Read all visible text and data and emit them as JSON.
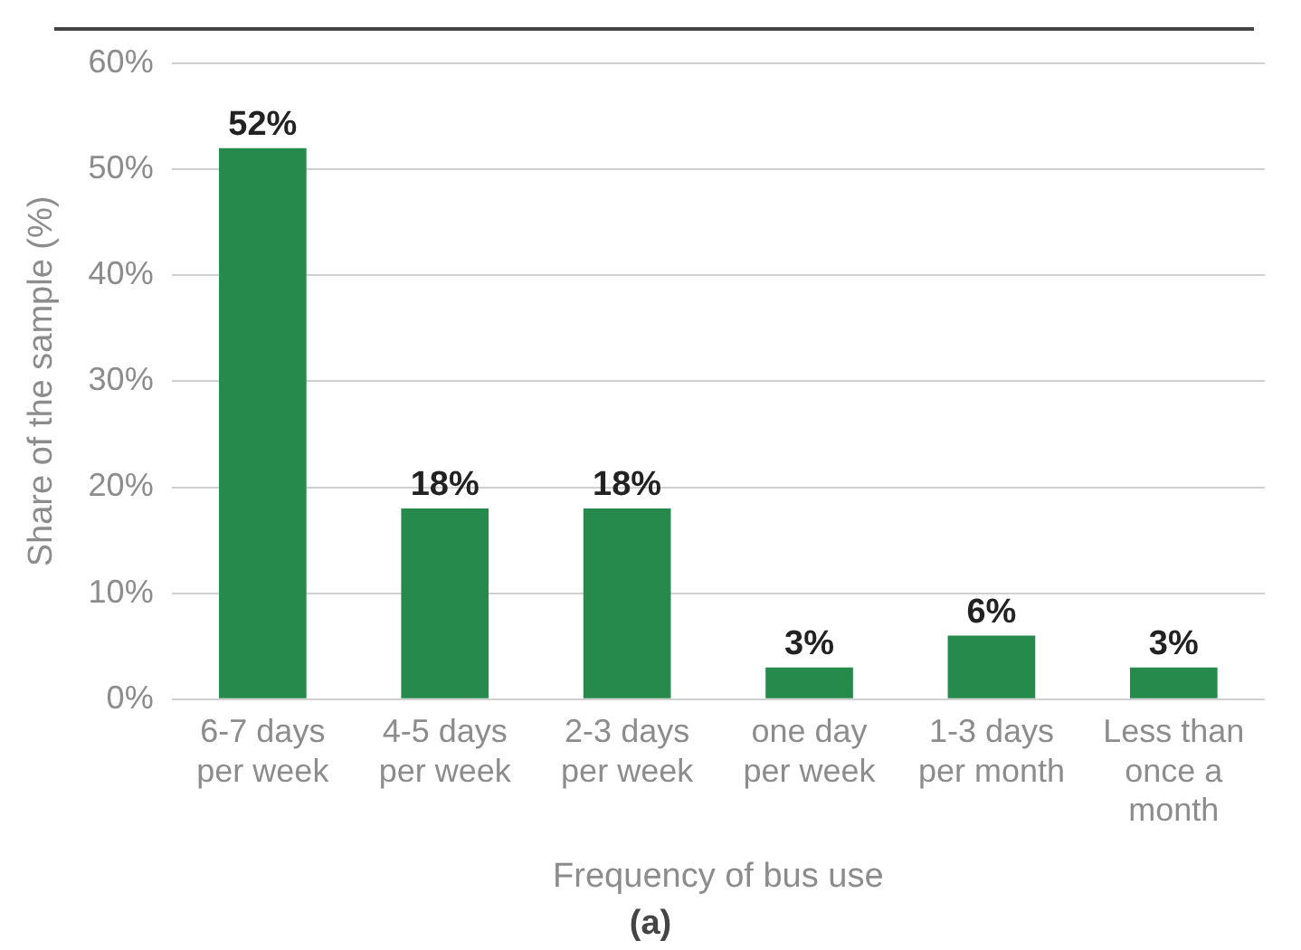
{
  "chart_data": {
    "type": "bar",
    "xlabel": "Frequency of bus use",
    "ylabel": "Share of the sample (%)",
    "categories": [
      "6-7 days per week",
      "4-5 days per week",
      "2-3 days per week",
      "one day per week",
      "1-3 days per month",
      "Less than once a month"
    ],
    "values": [
      52,
      18,
      18,
      3,
      6,
      3
    ],
    "color": "#268a4c",
    "value_labels": [
      "52%",
      "18%",
      "18%",
      "3%",
      "6%",
      "3%"
    ],
    "ylim": [
      0,
      60
    ],
    "yticks": [
      {
        "value": 0,
        "label": "0%"
      },
      {
        "value": 10,
        "label": "10%"
      },
      {
        "value": 20,
        "label": "20%"
      },
      {
        "value": 30,
        "label": "30%"
      },
      {
        "value": 40,
        "label": "40%"
      },
      {
        "value": 50,
        "label": "50%"
      },
      {
        "value": 60,
        "label": "60%"
      }
    ],
    "grid": "y",
    "legend": false,
    "annotations": [
      "(a)"
    ]
  }
}
